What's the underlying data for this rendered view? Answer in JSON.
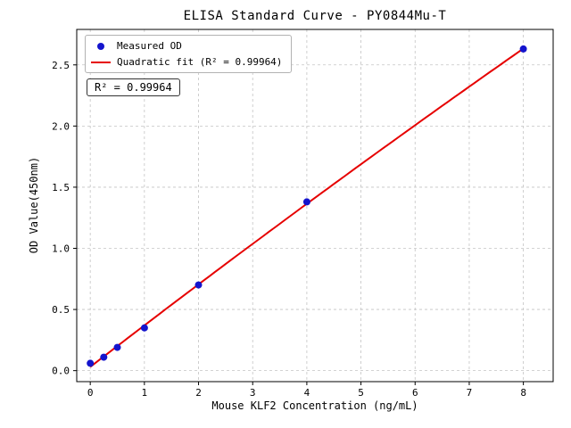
{
  "chart_data": {
    "type": "scatter",
    "title": "ELISA Standard Curve - PY0844Mu-T",
    "xlabel": "Mouse KLF2 Concentration (ng/mL)",
    "ylabel": "OD Value(450nm)",
    "annotation": "R² = 0.99964",
    "r_squared": 0.99964,
    "xlim": [
      -0.25,
      8.55
    ],
    "ylim": [
      -0.09,
      2.79
    ],
    "x_ticks": [
      0,
      1,
      2,
      3,
      4,
      5,
      6,
      7,
      8
    ],
    "y_ticks": [
      0.0,
      0.5,
      1.0,
      1.5,
      2.0,
      2.5
    ],
    "grid": true,
    "legend_position": "upper-left",
    "colors": {
      "grid": "#c3c3c3",
      "frame": "#000000",
      "background": "#ffffff",
      "scatter": "#1414cd",
      "fit_line": "#e60000"
    },
    "series": [
      {
        "name": "Measured OD",
        "type": "scatter",
        "color": "#1414cd",
        "x": [
          0,
          0.25,
          0.5,
          1,
          2,
          4,
          8
        ],
        "y": [
          0.06,
          0.11,
          0.19,
          0.35,
          0.7,
          1.38,
          2.63
        ]
      },
      {
        "name": "Quadratic fit (R² = 0.99964)",
        "type": "line",
        "fit": "quadratic",
        "color": "#e60000",
        "x_range": [
          0,
          8
        ]
      }
    ]
  }
}
